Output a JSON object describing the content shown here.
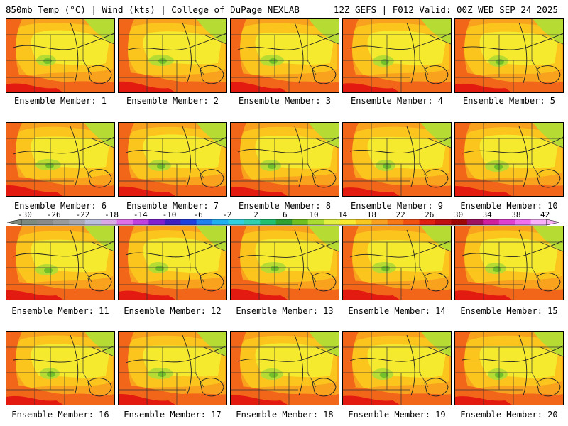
{
  "header": {
    "left": "850mb Temp (°C) | Wind (kts) | College of DuPage NEXLAB",
    "right": "12Z GEFS | F012 Valid: 00Z WED SEP 24 2025"
  },
  "members": [
    "Ensemble Member: 1",
    "Ensemble Member: 2",
    "Ensemble Member: 3",
    "Ensemble Member: 4",
    "Ensemble Member: 5",
    "Ensemble Member: 6",
    "Ensemble Member: 7",
    "Ensemble Member: 8",
    "Ensemble Member: 9",
    "Ensemble Member: 10",
    "Ensemble Member: 11",
    "Ensemble Member: 12",
    "Ensemble Member: 13",
    "Ensemble Member: 14",
    "Ensemble Member: 15",
    "Ensemble Member: 16",
    "Ensemble Member: 17",
    "Ensemble Member: 18",
    "Ensemble Member: 19",
    "Ensemble Member: 20"
  ],
  "colorbar": {
    "ticks": [
      "-30",
      "-26",
      "-22",
      "-18",
      "-14",
      "-10",
      "-6",
      "-2",
      "2",
      "6",
      "10",
      "14",
      "18",
      "22",
      "26",
      "30",
      "34",
      "38",
      "42"
    ],
    "colors": [
      "#7f8a7f",
      "#8a8a8a",
      "#9a9a9a",
      "#a8a8b4",
      "#b8c0dc",
      "#d8a8e8",
      "#e070e8",
      "#c040e0",
      "#8020d0",
      "#4020c0",
      "#2040e0",
      "#2080f0",
      "#20b0f0",
      "#30d0e0",
      "#30d0b0",
      "#20c070",
      "#30a030",
      "#70c020",
      "#a8dc30",
      "#e4f040",
      "#f8e830",
      "#f8c820",
      "#f8a020",
      "#f87818",
      "#f05010",
      "#e02010",
      "#c01010",
      "#a00808",
      "#a01060",
      "#d020a0",
      "#e040d0",
      "#f070f0",
      "#f8b0f8"
    ]
  },
  "field_colors": {
    "hot": "#e21a10",
    "warm": "#f2661a",
    "mild": "#f8a21e",
    "pale": "#fbc51e",
    "cool": "#f6ea2e",
    "cold": "#b6dc34",
    "cooler": "#72c02a"
  }
}
